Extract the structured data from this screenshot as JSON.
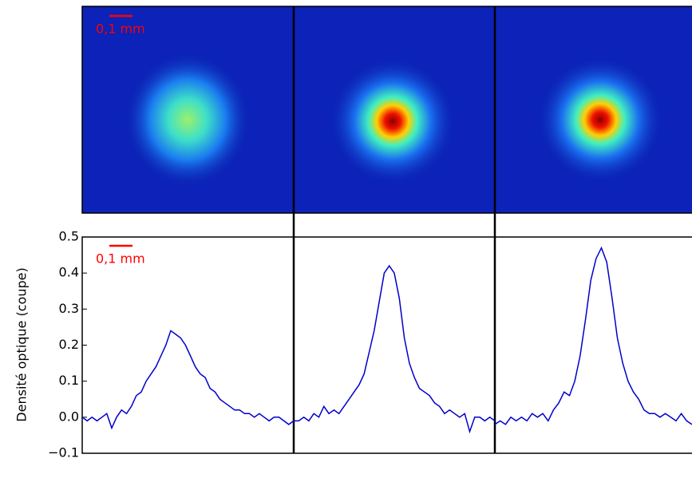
{
  "chart_data": {
    "type": "line",
    "y_label": "Densité optique (coupe)",
    "scale_labels": [
      "0,1 mm",
      "0,1 mm"
    ],
    "ylim": [
      -0.1,
      0.5
    ],
    "yticks": [
      {
        "value": -0.1,
        "label": "−0.1"
      },
      {
        "value": 0,
        "label": "0.0"
      },
      0.1,
      0.2,
      0.3,
      0.4,
      0.5
    ],
    "line_color": "#0000cc",
    "panels": [
      {
        "values": [
          0.0,
          -0.01,
          0.0,
          -0.01,
          0.0,
          0.01,
          -0.03,
          0.0,
          0.02,
          0.01,
          0.03,
          0.06,
          0.07,
          0.1,
          0.12,
          0.14,
          0.17,
          0.2,
          0.24,
          0.23,
          0.22,
          0.2,
          0.17,
          0.14,
          0.12,
          0.11,
          0.08,
          0.07,
          0.05,
          0.04,
          0.03,
          0.02,
          0.02,
          0.01,
          0.01,
          0.0,
          0.01,
          0.0,
          -0.01,
          0.0,
          0.0,
          -0.01,
          -0.02,
          -0.01
        ]
      },
      {
        "values": [
          -0.01,
          -0.01,
          0.0,
          -0.01,
          0.01,
          0.0,
          0.03,
          0.01,
          0.02,
          0.01,
          0.03,
          0.05,
          0.07,
          0.09,
          0.12,
          0.18,
          0.24,
          0.32,
          0.4,
          0.42,
          0.4,
          0.33,
          0.22,
          0.15,
          0.11,
          0.08,
          0.07,
          0.06,
          0.04,
          0.03,
          0.01,
          0.02,
          0.01,
          0.0,
          0.01,
          -0.04,
          0.0,
          0.0,
          -0.01,
          0.0,
          -0.01
        ]
      },
      {
        "values": [
          -0.02,
          -0.01,
          -0.02,
          0.0,
          -0.01,
          0.0,
          -0.01,
          0.01,
          0.0,
          0.01,
          -0.01,
          0.02,
          0.04,
          0.07,
          0.06,
          0.1,
          0.17,
          0.27,
          0.38,
          0.44,
          0.47,
          0.43,
          0.33,
          0.22,
          0.15,
          0.1,
          0.07,
          0.05,
          0.02,
          0.01,
          0.01,
          0.0,
          0.01,
          0.0,
          -0.01,
          0.01,
          -0.01,
          -0.02
        ]
      }
    ]
  }
}
